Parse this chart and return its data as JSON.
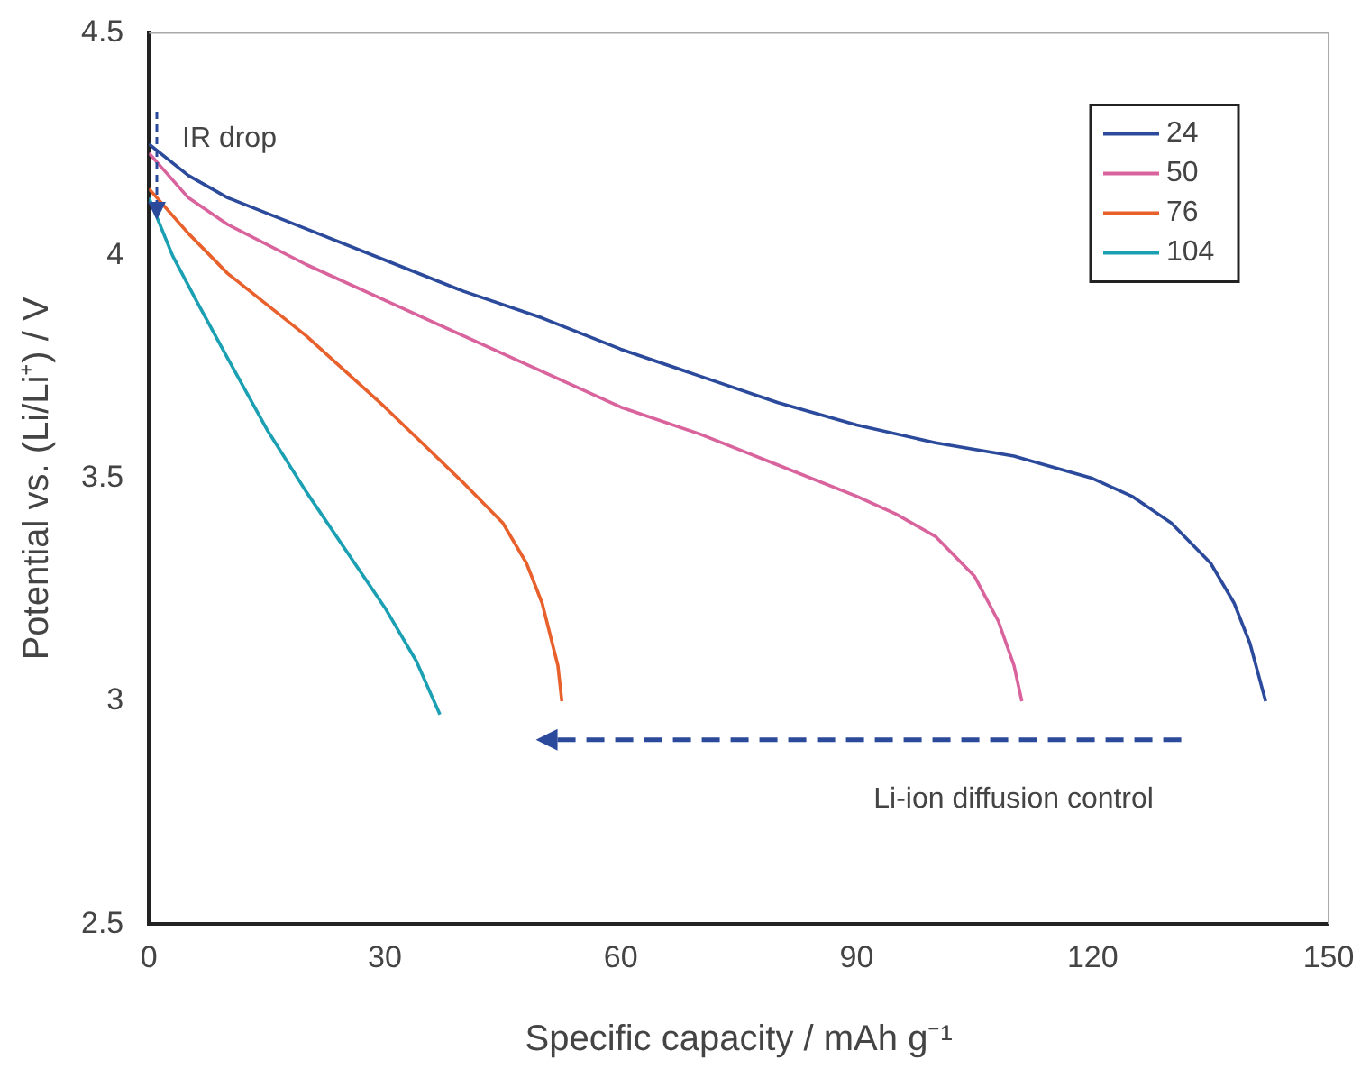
{
  "chart_data": {
    "type": "line",
    "xlabel": "Specific capacity / mAh g⁻¹",
    "ylabel": "Potential vs. (Li/Li⁺) / V",
    "xlim": [
      0,
      150
    ],
    "xticks": [
      0,
      30,
      60,
      90,
      120,
      150
    ],
    "ylim": [
      2.5,
      4.5
    ],
    "yticks": [
      2.5,
      3,
      3.5,
      4,
      4.5
    ],
    "grid": false,
    "legend": "top right",
    "marker": "none",
    "line_style": "solid",
    "annotations": [
      {
        "text": "IR drop",
        "x": 1,
        "y": 4.08
      },
      "Li-ion diffusion control"
    ],
    "series": [
      {
        "name": "24",
        "color": "#2b4a9b",
        "x": [
          0,
          5,
          10,
          20,
          30,
          40,
          50,
          60,
          70,
          80,
          90,
          100,
          110,
          120,
          125,
          130,
          135,
          138,
          140,
          142
        ],
        "values": [
          4.25,
          4.18,
          4.13,
          4.06,
          3.99,
          3.92,
          3.86,
          3.79,
          3.73,
          3.67,
          3.62,
          3.58,
          3.55,
          3.5,
          3.46,
          3.4,
          3.31,
          3.22,
          3.13,
          3.0
        ]
      },
      {
        "name": "50",
        "color": "#d9639c",
        "x": [
          0,
          5,
          10,
          20,
          30,
          40,
          50,
          60,
          70,
          80,
          90,
          95,
          100,
          105,
          108,
          110,
          111
        ],
        "values": [
          4.23,
          4.13,
          4.07,
          3.98,
          3.9,
          3.82,
          3.74,
          3.66,
          3.6,
          3.53,
          3.46,
          3.42,
          3.37,
          3.28,
          3.18,
          3.08,
          3.0
        ]
      },
      {
        "name": "76",
        "color": "#e8602c",
        "x": [
          0,
          5,
          10,
          20,
          30,
          40,
          45,
          48,
          50,
          52,
          52.5
        ],
        "values": [
          4.15,
          4.05,
          3.96,
          3.82,
          3.66,
          3.49,
          3.4,
          3.31,
          3.22,
          3.08,
          3.0
        ]
      },
      {
        "name": "104",
        "color": "#1a9fb3",
        "x": [
          0,
          3,
          6,
          10,
          15,
          20,
          25,
          30,
          34,
          37
        ],
        "values": [
          4.13,
          4.0,
          3.9,
          3.77,
          3.61,
          3.47,
          3.34,
          3.21,
          3.09,
          2.97
        ]
      }
    ]
  }
}
